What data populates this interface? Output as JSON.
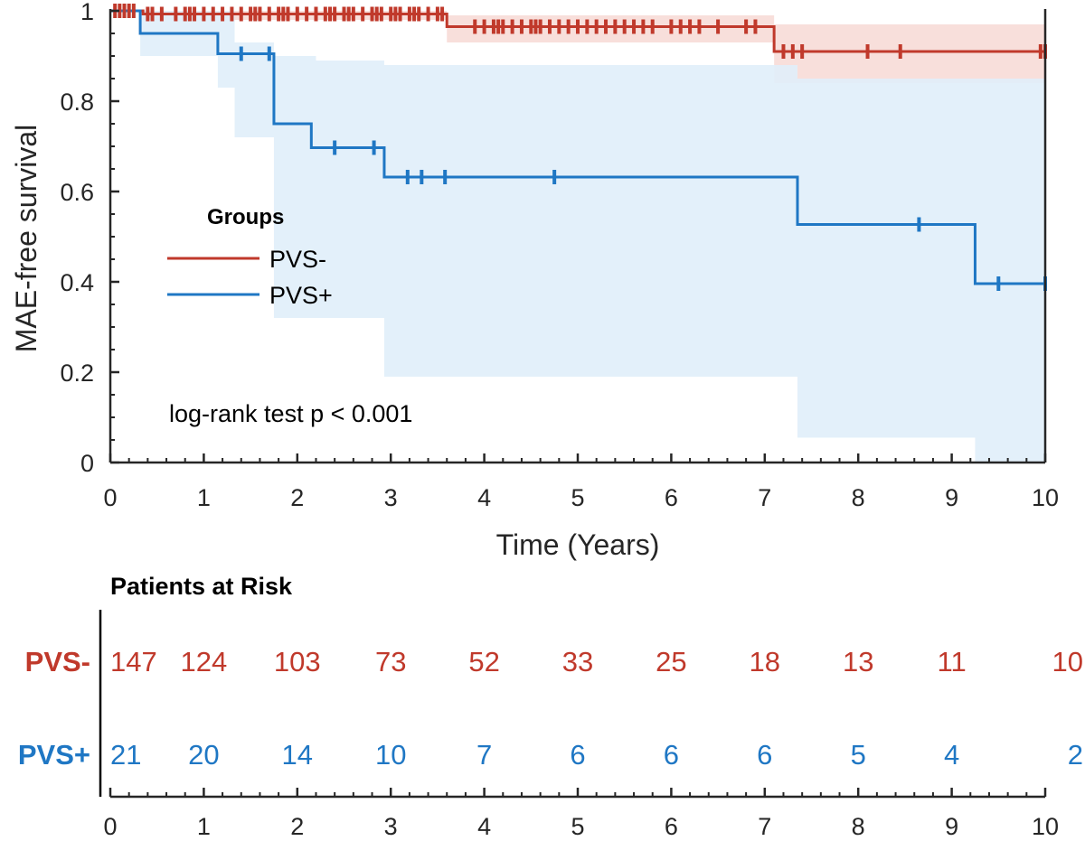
{
  "chart_data": {
    "type": "line",
    "subtype": "kaplan-meier",
    "ylabel": "MAE-free survival",
    "xlabel": "Time (Years)",
    "xlim": [
      0,
      10
    ],
    "ylim": [
      0,
      1
    ],
    "x_ticks": [
      "0",
      "1",
      "2",
      "3",
      "4",
      "5",
      "6",
      "7",
      "8",
      "9",
      "10"
    ],
    "y_ticks": [
      "0",
      "0.2",
      "0.4",
      "0.6",
      "0.8",
      "1"
    ],
    "legend_title": "Groups",
    "legend_position": "center-left",
    "annotation": "log-rank test p < 0.001",
    "colors": {
      "pvs_minus": "#c0392b",
      "pvs_plus": "#1f77c4"
    },
    "series": [
      {
        "name": "PVS-",
        "color": "#c0392b",
        "band_color": "#f7d9d5",
        "steps": [
          [
            0,
            1.0
          ],
          [
            0.35,
            0.993
          ],
          [
            3.6,
            0.965
          ],
          [
            7.1,
            0.91
          ],
          [
            10,
            0.91
          ]
        ],
        "ci_steps": [
          [
            0,
            1.0,
            1.0
          ],
          [
            0.35,
            1.0,
            0.98
          ],
          [
            3.6,
            0.99,
            0.93
          ],
          [
            7.1,
            0.97,
            0.84
          ],
          [
            10,
            0.97,
            0.84
          ]
        ],
        "censor": [
          0.05,
          0.1,
          0.15,
          0.2,
          0.25,
          0.4,
          0.45,
          0.55,
          0.7,
          0.8,
          0.85,
          0.9,
          1.0,
          1.1,
          1.2,
          1.3,
          1.4,
          1.5,
          1.55,
          1.6,
          1.7,
          1.8,
          1.85,
          1.9,
          2.0,
          2.1,
          2.2,
          2.3,
          2.35,
          2.4,
          2.5,
          2.55,
          2.6,
          2.7,
          2.8,
          2.85,
          2.9,
          3.0,
          3.05,
          3.1,
          3.2,
          3.25,
          3.3,
          3.4,
          3.5,
          3.55,
          3.9,
          4.0,
          4.1,
          4.15,
          4.2,
          4.3,
          4.4,
          4.5,
          4.55,
          4.6,
          4.7,
          4.8,
          4.9,
          5.0,
          5.1,
          5.2,
          5.3,
          5.4,
          5.5,
          5.6,
          5.7,
          5.8,
          6.0,
          6.1,
          6.2,
          6.3,
          6.5,
          6.8,
          6.9,
          7.2,
          7.3,
          7.4,
          8.1,
          8.45,
          9.95,
          10.0
        ]
      },
      {
        "name": "PVS+",
        "color": "#1f77c4",
        "band_color": "#e0eef9",
        "steps": [
          [
            0,
            1.0
          ],
          [
            0.32,
            0.95
          ],
          [
            1.15,
            0.905
          ],
          [
            1.75,
            0.75
          ],
          [
            2.15,
            0.697
          ],
          [
            2.93,
            0.632
          ],
          [
            7.35,
            0.527
          ],
          [
            9.25,
            0.396
          ],
          [
            10,
            0.396
          ]
        ],
        "ci_steps": [
          [
            0,
            1.0,
            1.0
          ],
          [
            0.32,
            1.0,
            0.9
          ],
          [
            1.15,
            1.0,
            0.83
          ],
          [
            1.33,
            0.93,
            0.72
          ],
          [
            1.75,
            0.9,
            0.32
          ],
          [
            2.2,
            0.89,
            0.32
          ],
          [
            2.93,
            0.88,
            0.19
          ],
          [
            7.35,
            0.85,
            0.055
          ],
          [
            9.25,
            0.85,
            0.0
          ],
          [
            10,
            0.85,
            0.0
          ]
        ],
        "censor": [
          1.4,
          1.7,
          2.4,
          2.82,
          3.18,
          3.33,
          3.58,
          4.75,
          8.65,
          9.5,
          10.0
        ]
      }
    ]
  },
  "risk_table": {
    "title": "Patients at Risk",
    "x_ticks": [
      "0",
      "1",
      "2",
      "3",
      "4",
      "5",
      "6",
      "7",
      "8",
      "9",
      "10"
    ],
    "rows": [
      {
        "label": "PVS-",
        "color": "#c0392b",
        "values": [
          "147",
          "124",
          "103",
          "73",
          "52",
          "33",
          "25",
          "18",
          "13",
          "11",
          "10"
        ]
      },
      {
        "label": "PVS+",
        "color": "#1f77c4",
        "values": [
          "21",
          "20",
          "14",
          "10",
          "7",
          "6",
          "6",
          "6",
          "5",
          "4",
          "2"
        ]
      }
    ]
  }
}
